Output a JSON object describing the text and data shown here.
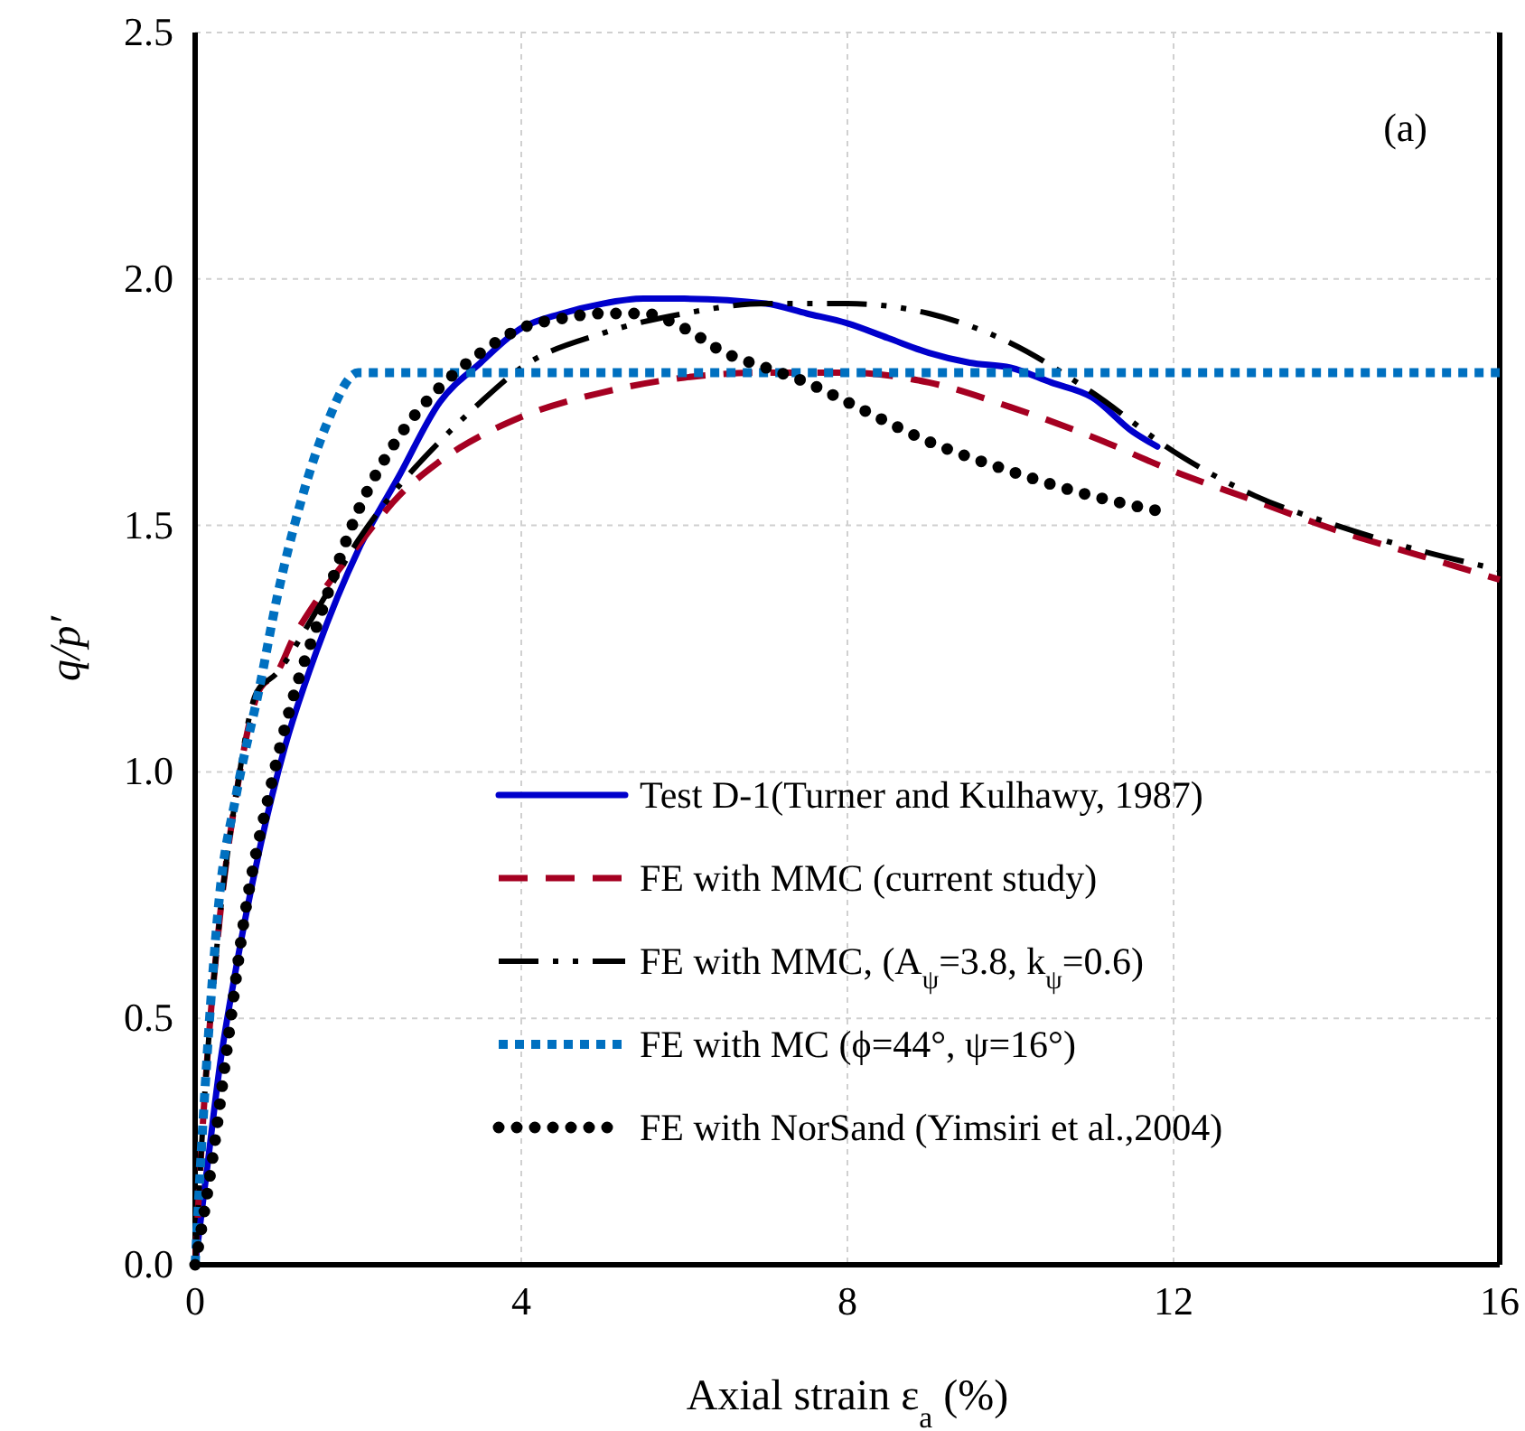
{
  "chart_data": {
    "type": "line",
    "xlabel": "Axial strain ε$_{a}$ (%)",
    "ylabel": "q/p′",
    "annotations": [
      "(a)"
    ],
    "xlim": [
      0,
      16
    ],
    "xticks": [
      0,
      4,
      8,
      12,
      16
    ],
    "ylim": [
      0,
      2.5
    ],
    "yticks": [
      {
        "value": 0,
        "label": "0.0"
      },
      {
        "value": 0.5,
        "label": "0.5"
      },
      {
        "value": 1,
        "label": "1.0"
      },
      {
        "value": 1.5,
        "label": "1.5"
      },
      {
        "value": 2,
        "label": "2.0"
      },
      {
        "value": 2.5,
        "label": "2.5"
      }
    ],
    "grid": true,
    "legend": "bottom right",
    "marker": "none",
    "series": [
      {
        "name": "Test D-1(Turner and Kulhawy, 1987)",
        "color": "#0000cc",
        "line_style": "solid",
        "x": [
          0,
          0.15,
          0.3,
          0.5,
          0.8,
          1.1,
          1.5,
          2,
          2.5,
          3,
          3.5,
          4,
          4.5,
          5,
          5.5,
          6,
          7,
          7.5,
          8,
          8.5,
          9,
          9.5,
          10,
          10.5,
          11,
          11.5,
          11.8
        ],
        "values": [
          0,
          0.2,
          0.4,
          0.6,
          0.85,
          1.05,
          1.25,
          1.45,
          1.6,
          1.75,
          1.83,
          1.9,
          1.93,
          1.95,
          1.96,
          1.96,
          1.95,
          1.93,
          1.91,
          1.88,
          1.85,
          1.83,
          1.82,
          1.79,
          1.76,
          1.69,
          1.66
        ]
      },
      {
        "name": "FE with MMC (current study)",
        "color": "#a50021",
        "line_style": "dashed",
        "x": [
          0,
          0.1,
          0.3,
          0.5,
          0.8,
          1,
          1.2,
          1.5,
          2,
          2.5,
          3,
          4,
          5,
          6,
          7,
          8,
          9,
          10,
          11,
          12,
          13,
          14,
          15,
          16
        ],
        "values": [
          0,
          0.3,
          0.7,
          0.95,
          1.17,
          1.2,
          1.27,
          1.35,
          1.46,
          1.56,
          1.63,
          1.72,
          1.77,
          1.8,
          1.81,
          1.81,
          1.79,
          1.74,
          1.68,
          1.61,
          1.55,
          1.49,
          1.44,
          1.39
        ]
      },
      {
        "name": "FE with MMC, (A$_{ψ}$=3.8, k$_{ψ}$=0.6)",
        "color": "#000000",
        "line_style": "dashdot",
        "x": [
          0,
          0.1,
          0.3,
          0.5,
          0.75,
          1,
          1.5,
          2,
          2.5,
          3,
          3.5,
          4,
          5,
          6,
          7,
          8,
          9,
          10,
          11,
          12,
          13,
          14,
          15,
          16
        ],
        "values": [
          0,
          0.3,
          0.7,
          0.95,
          1.16,
          1.2,
          1.33,
          1.47,
          1.58,
          1.67,
          1.75,
          1.82,
          1.89,
          1.93,
          1.95,
          1.95,
          1.93,
          1.87,
          1.77,
          1.65,
          1.56,
          1.5,
          1.45,
          1.41
        ]
      },
      {
        "name": "FE with MC (ϕ=44°, ψ=16°)",
        "color": "#0070c0",
        "line_style": "dotted",
        "x": [
          0,
          0.1,
          0.3,
          0.5,
          0.8,
          1,
          1.3,
          1.6,
          2,
          16
        ],
        "values": [
          0,
          0.3,
          0.75,
          0.95,
          1.18,
          1.35,
          1.55,
          1.7,
          1.81,
          1.81
        ]
      },
      {
        "name": "FE with NorSand (Yimsiri et al.,2004)",
        "color": "#000000",
        "line_style": "round-dotted",
        "x": [
          0,
          0.2,
          0.4,
          0.6,
          0.9,
          1.2,
          1.5,
          2,
          2.5,
          3,
          3.5,
          4,
          4.5,
          5,
          5.5,
          6,
          6.5,
          7,
          7.5,
          8,
          9,
          10,
          11,
          11.8
        ],
        "values": [
          0,
          0.2,
          0.45,
          0.7,
          0.95,
          1.15,
          1.3,
          1.53,
          1.68,
          1.78,
          1.85,
          1.9,
          1.92,
          1.93,
          1.93,
          1.9,
          1.85,
          1.82,
          1.79,
          1.75,
          1.67,
          1.61,
          1.56,
          1.53
        ]
      }
    ]
  }
}
